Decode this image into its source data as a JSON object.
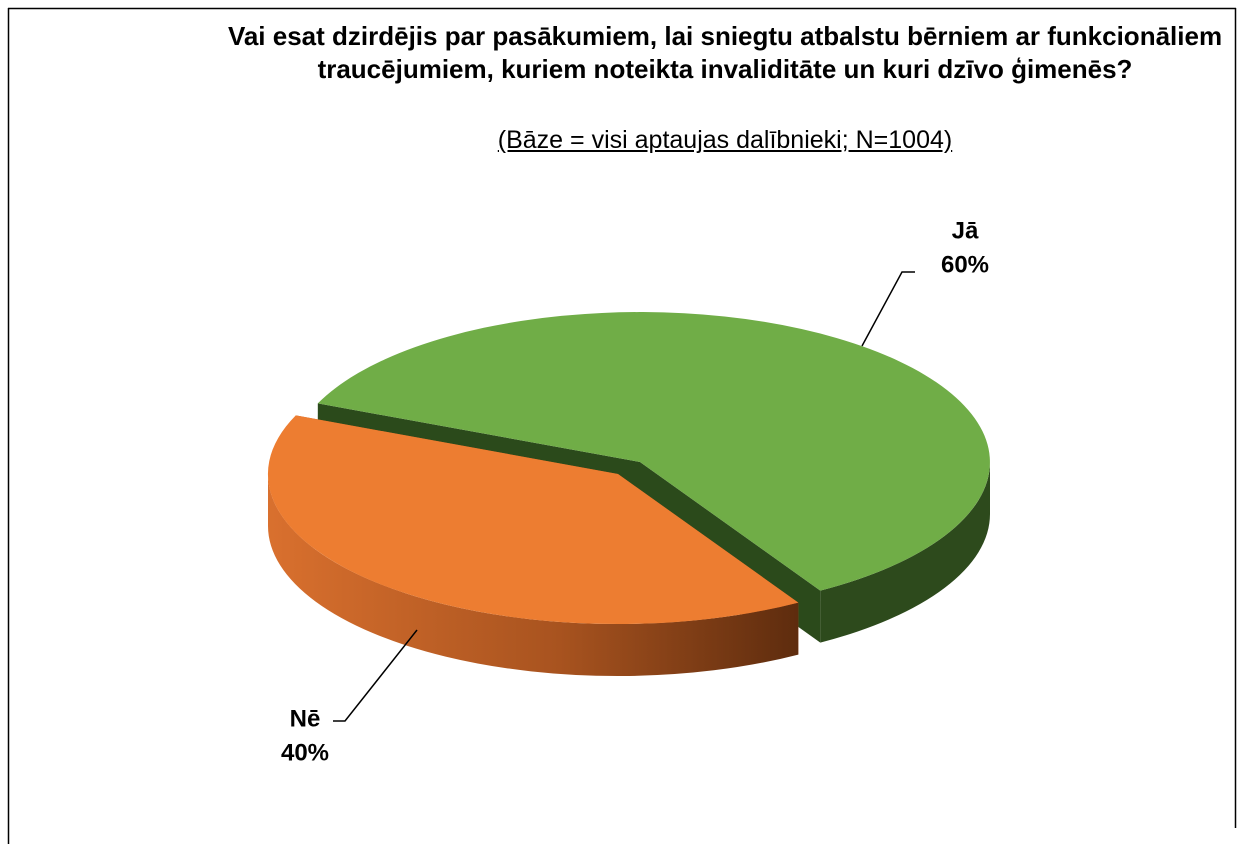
{
  "chart_data": {
    "type": "pie",
    "title": "Vai esat dzirdējis par pasākumiem, lai sniegtu atbalstu bērniem ar funkcionāliem traucējumiem, kuriem noteikta invaliditāte un kuri dzīvo ģimenēs?",
    "subtitle": "(Bāze = visi aptaujas dalībnieki; N=1004)",
    "categories": [
      "Jā",
      "Nē"
    ],
    "values": [
      60,
      40
    ],
    "value_labels": [
      "60%",
      "40%"
    ],
    "colors": [
      "#70ad47",
      "#ed7d31"
    ]
  }
}
